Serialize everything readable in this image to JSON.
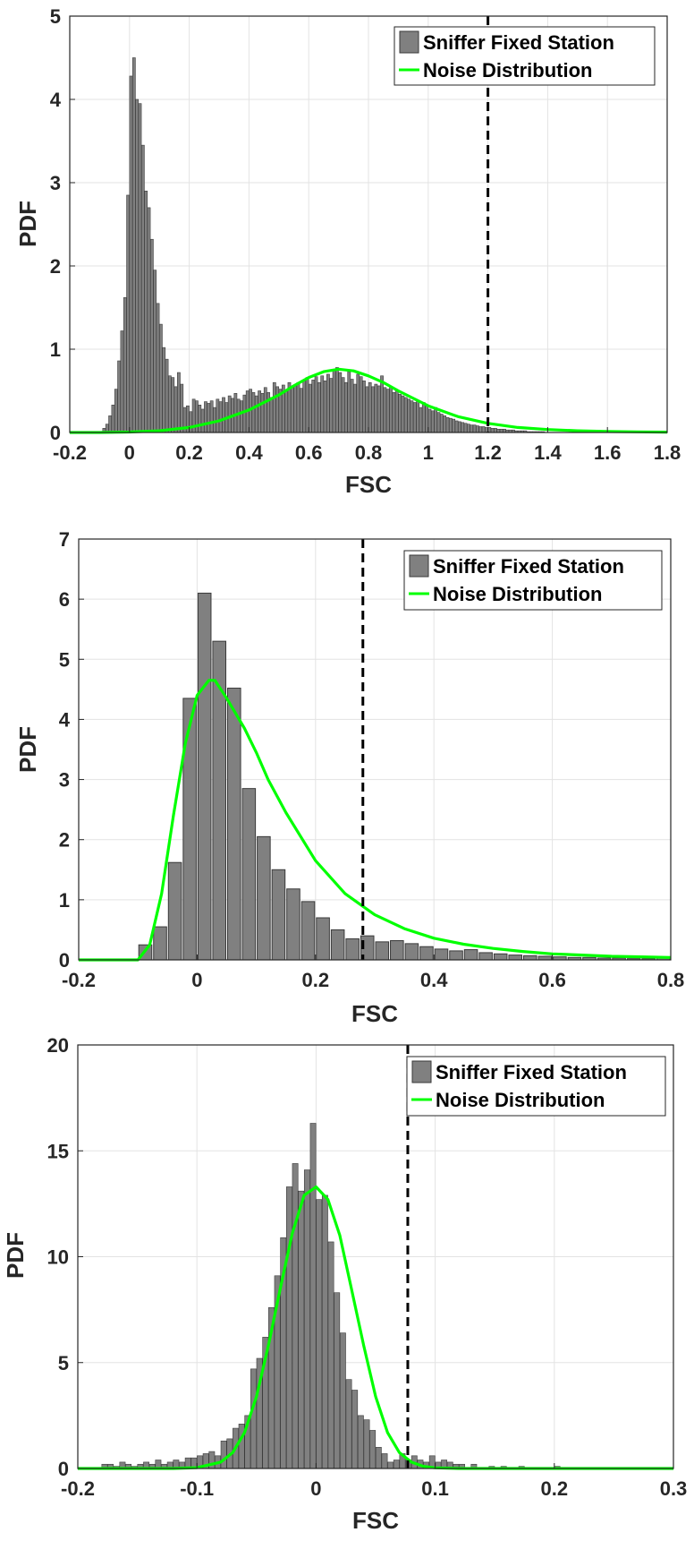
{
  "colors": {
    "bar_fill": "#808080",
    "bar_edge": "#3a3a3a",
    "noise_line": "#00ff00",
    "threshold_line": "#000000",
    "grid": "#e3e3e3",
    "axis": "#262626"
  },
  "chart_data": [
    {
      "type": "bar",
      "xlabel": "FSC",
      "ylabel": "PDF",
      "xlim": [
        -0.2,
        1.8
      ],
      "ylim": [
        0,
        5
      ],
      "xticks": [
        -0.2,
        0,
        0.2,
        0.4,
        0.6,
        0.8,
        1,
        1.2,
        1.4,
        1.6,
        1.8
      ],
      "xtick_labels": [
        "-0.2",
        "0",
        "0.2",
        "0.4",
        "0.6",
        "0.8",
        "1",
        "1.2",
        "1.4",
        "1.6",
        "1.8"
      ],
      "yticks": [
        0,
        1,
        2,
        3,
        4,
        5
      ],
      "ytick_labels": [
        "0",
        "1",
        "2",
        "3",
        "4",
        "5"
      ],
      "grid": true,
      "legend": {
        "location": "top-right",
        "entries": [
          "Sniffer Fixed Station",
          "Noise Distribution"
        ]
      },
      "series": [
        {
          "name": "Sniffer Fixed Station",
          "kind": "histogram",
          "bin_width": 0.01,
          "bin_centers": [
            -0.085,
            -0.075,
            -0.065,
            -0.055,
            -0.045,
            -0.035,
            -0.025,
            -0.015,
            -0.005,
            0.005,
            0.015,
            0.025,
            0.035,
            0.045,
            0.055,
            0.065,
            0.075,
            0.085,
            0.095,
            0.105,
            0.115,
            0.125,
            0.135,
            0.145,
            0.155,
            0.165,
            0.175,
            0.185,
            0.195,
            0.205,
            0.215,
            0.225,
            0.235,
            0.245,
            0.255,
            0.265,
            0.275,
            0.285,
            0.295,
            0.305,
            0.315,
            0.325,
            0.335,
            0.345,
            0.355,
            0.365,
            0.375,
            0.385,
            0.395,
            0.405,
            0.415,
            0.425,
            0.435,
            0.445,
            0.455,
            0.465,
            0.475,
            0.485,
            0.495,
            0.505,
            0.515,
            0.525,
            0.535,
            0.545,
            0.555,
            0.565,
            0.575,
            0.585,
            0.595,
            0.605,
            0.615,
            0.625,
            0.635,
            0.645,
            0.655,
            0.665,
            0.675,
            0.685,
            0.695,
            0.705,
            0.715,
            0.725,
            0.735,
            0.745,
            0.755,
            0.765,
            0.775,
            0.785,
            0.795,
            0.805,
            0.815,
            0.825,
            0.835,
            0.845,
            0.855,
            0.865,
            0.875,
            0.885,
            0.895,
            0.905,
            0.915,
            0.925,
            0.935,
            0.945,
            0.955,
            0.965,
            0.975,
            0.985,
            0.995,
            1.005,
            1.015,
            1.025,
            1.035,
            1.045,
            1.055,
            1.065,
            1.075,
            1.085,
            1.095,
            1.105,
            1.115,
            1.125,
            1.135,
            1.145,
            1.155,
            1.165,
            1.175,
            1.185,
            1.195,
            1.205,
            1.215,
            1.225,
            1.235,
            1.245,
            1.255,
            1.265,
            1.275,
            1.285,
            1.295,
            1.305,
            1.315,
            1.325,
            1.335,
            1.345,
            1.355,
            1.365,
            1.375,
            1.385,
            1.395
          ],
          "values": [
            0.05,
            0.1,
            0.2,
            0.33,
            0.52,
            0.86,
            1.22,
            1.62,
            2.85,
            4.28,
            4.5,
            4.0,
            3.95,
            3.45,
            2.9,
            2.7,
            2.32,
            1.95,
            1.55,
            1.3,
            1.02,
            0.88,
            0.68,
            0.66,
            0.55,
            0.72,
            0.58,
            0.3,
            0.32,
            0.25,
            0.4,
            0.38,
            0.33,
            0.28,
            0.37,
            0.35,
            0.38,
            0.3,
            0.4,
            0.37,
            0.42,
            0.36,
            0.44,
            0.41,
            0.47,
            0.4,
            0.38,
            0.45,
            0.5,
            0.52,
            0.48,
            0.44,
            0.5,
            0.47,
            0.54,
            0.48,
            0.42,
            0.6,
            0.55,
            0.52,
            0.57,
            0.5,
            0.6,
            0.55,
            0.56,
            0.6,
            0.53,
            0.62,
            0.66,
            0.58,
            0.63,
            0.67,
            0.6,
            0.68,
            0.62,
            0.7,
            0.65,
            0.75,
            0.78,
            0.72,
            0.66,
            0.6,
            0.73,
            0.64,
            0.58,
            0.7,
            0.67,
            0.62,
            0.55,
            0.6,
            0.55,
            0.58,
            0.56,
            0.68,
            0.54,
            0.52,
            0.55,
            0.48,
            0.5,
            0.46,
            0.44,
            0.42,
            0.4,
            0.38,
            0.36,
            0.38,
            0.3,
            0.36,
            0.33,
            0.28,
            0.26,
            0.3,
            0.24,
            0.22,
            0.2,
            0.18,
            0.17,
            0.16,
            0.14,
            0.13,
            0.12,
            0.11,
            0.1,
            0.09,
            0.09,
            0.08,
            0.07,
            0.07,
            0.06,
            0.06,
            0.05,
            0.05,
            0.04,
            0.04,
            0.04,
            0.03,
            0.03,
            0.03,
            0.02,
            0.02,
            0.02,
            0.02,
            0.01,
            0.01,
            0.01,
            0.01,
            0.01,
            0.01
          ]
        },
        {
          "name": "Noise Distribution",
          "kind": "line",
          "x": [
            -0.2,
            -0.1,
            0.0,
            0.1,
            0.2,
            0.3,
            0.4,
            0.5,
            0.55,
            0.6,
            0.65,
            0.7,
            0.75,
            0.8,
            0.85,
            0.9,
            1.0,
            1.1,
            1.2,
            1.3,
            1.4,
            1.5,
            1.6,
            1.7,
            1.8
          ],
          "y": [
            0.0,
            0.0,
            0.005,
            0.02,
            0.06,
            0.14,
            0.27,
            0.45,
            0.56,
            0.66,
            0.73,
            0.76,
            0.74,
            0.68,
            0.6,
            0.5,
            0.32,
            0.19,
            0.11,
            0.06,
            0.035,
            0.02,
            0.012,
            0.007,
            0.004
          ]
        }
      ],
      "threshold_x": 1.2
    },
    {
      "type": "bar",
      "xlabel": "FSC",
      "ylabel": "PDF",
      "xlim": [
        -0.2,
        0.8
      ],
      "ylim": [
        0,
        7
      ],
      "xticks": [
        -0.2,
        0,
        0.2,
        0.4,
        0.6,
        0.8
      ],
      "xtick_labels": [
        "-0.2",
        "0",
        "0.2",
        "0.4",
        "0.6",
        "0.8"
      ],
      "yticks": [
        0,
        1,
        2,
        3,
        4,
        5,
        6,
        7
      ],
      "ytick_labels": [
        "0",
        "1",
        "2",
        "3",
        "4",
        "5",
        "6",
        "7"
      ],
      "grid": true,
      "legend": {
        "location": "top-right",
        "entries": [
          "Sniffer Fixed Station",
          "Noise Distribution"
        ]
      },
      "series": [
        {
          "name": "Sniffer Fixed Station",
          "kind": "histogram",
          "bin_width": 0.025,
          "bin_centers": [
            -0.0875,
            -0.0625,
            -0.0375,
            -0.0125,
            0.0125,
            0.0375,
            0.0625,
            0.0875,
            0.1125,
            0.1375,
            0.1625,
            0.1875,
            0.2125,
            0.2375,
            0.2625,
            0.2875,
            0.3125,
            0.3375,
            0.3625,
            0.3875,
            0.4125,
            0.4375,
            0.4625,
            0.4875,
            0.5125,
            0.5375,
            0.5625,
            0.5875,
            0.6125,
            0.6375,
            0.6625,
            0.6875,
            0.7125,
            0.7375,
            0.7625,
            0.7875
          ],
          "values": [
            0.25,
            0.55,
            1.62,
            4.35,
            6.1,
            5.3,
            4.52,
            2.85,
            2.05,
            1.5,
            1.18,
            0.97,
            0.7,
            0.5,
            0.35,
            0.4,
            0.3,
            0.32,
            0.27,
            0.22,
            0.18,
            0.15,
            0.17,
            0.12,
            0.1,
            0.08,
            0.07,
            0.06,
            0.05,
            0.04,
            0.04,
            0.03,
            0.03,
            0.02,
            0.02,
            0.05
          ]
        },
        {
          "name": "Noise Distribution",
          "kind": "line",
          "x": [
            -0.2,
            -0.1,
            -0.08,
            -0.06,
            -0.04,
            -0.02,
            0.0,
            0.02,
            0.03,
            0.05,
            0.08,
            0.1,
            0.12,
            0.15,
            0.2,
            0.25,
            0.3,
            0.35,
            0.4,
            0.45,
            0.5,
            0.55,
            0.6,
            0.65,
            0.7,
            0.75,
            0.8
          ],
          "y": [
            0.0,
            0.0,
            0.25,
            1.1,
            2.4,
            3.6,
            4.4,
            4.65,
            4.65,
            4.35,
            3.85,
            3.45,
            3.0,
            2.45,
            1.65,
            1.1,
            0.75,
            0.52,
            0.36,
            0.26,
            0.19,
            0.14,
            0.1,
            0.08,
            0.06,
            0.05,
            0.04
          ]
        }
      ],
      "threshold_x": 0.28
    },
    {
      "type": "bar",
      "xlabel": "FSC",
      "ylabel": "PDF",
      "xlim": [
        -0.2,
        0.3
      ],
      "ylim": [
        0,
        20
      ],
      "xticks": [
        -0.2,
        -0.1,
        0,
        0.1,
        0.2,
        0.3
      ],
      "xtick_labels": [
        "-0.2",
        "-0.1",
        "0",
        "0.1",
        "0.2",
        "0.3"
      ],
      "yticks": [
        0,
        5,
        10,
        15,
        20
      ],
      "ytick_labels": [
        "0",
        "5",
        "10",
        "15",
        "20"
      ],
      "grid": true,
      "legend": {
        "location": "top-right",
        "entries": [
          "Sniffer Fixed Station",
          "Noise Distribution"
        ]
      },
      "series": [
        {
          "name": "Sniffer Fixed Station",
          "kind": "histogram",
          "bin_width": 0.005,
          "bin_centers": [
            -0.1775,
            -0.1725,
            -0.1675,
            -0.1625,
            -0.1575,
            -0.1525,
            -0.1475,
            -0.1425,
            -0.1375,
            -0.1325,
            -0.1275,
            -0.1225,
            -0.1175,
            -0.1125,
            -0.1075,
            -0.1025,
            -0.0975,
            -0.0925,
            -0.0875,
            -0.0825,
            -0.0775,
            -0.0725,
            -0.0675,
            -0.0625,
            -0.0575,
            -0.0525,
            -0.0475,
            -0.0425,
            -0.0375,
            -0.0325,
            -0.0275,
            -0.0225,
            -0.0175,
            -0.0125,
            -0.0075,
            -0.0025,
            0.0025,
            0.0075,
            0.0125,
            0.0175,
            0.0225,
            0.0275,
            0.0325,
            0.0375,
            0.0425,
            0.0475,
            0.0525,
            0.0575,
            0.0625,
            0.0675,
            0.0725,
            0.0775,
            0.0825,
            0.0875,
            0.0925,
            0.0975,
            0.1025,
            0.1075,
            0.1125,
            0.1175,
            0.1225,
            0.1325,
            0.1475,
            0.1575,
            0.1725,
            0.2025
          ],
          "values": [
            0.2,
            0.2,
            0.1,
            0.3,
            0.2,
            0.1,
            0.2,
            0.3,
            0.2,
            0.4,
            0.2,
            0.3,
            0.4,
            0.3,
            0.5,
            0.5,
            0.6,
            0.7,
            0.8,
            0.6,
            1.3,
            1.4,
            1.9,
            2.1,
            2.5,
            4.7,
            5.2,
            6.2,
            7.6,
            9.1,
            10.9,
            13.3,
            14.4,
            13.1,
            14.1,
            16.3,
            12.7,
            12.9,
            10.7,
            8.3,
            6.4,
            4.2,
            3.7,
            2.5,
            2.3,
            1.8,
            1.0,
            0.7,
            0.3,
            0.4,
            0.7,
            0.4,
            0.6,
            0.4,
            0.3,
            0.6,
            0.3,
            0.4,
            0.3,
            0.2,
            0.2,
            0.2,
            0.1,
            0.1,
            0.1,
            0.1
          ]
        },
        {
          "name": "Noise Distribution",
          "kind": "line",
          "x": [
            -0.2,
            -0.12,
            -0.1,
            -0.08,
            -0.07,
            -0.06,
            -0.05,
            -0.04,
            -0.03,
            -0.02,
            -0.01,
            0.0,
            0.01,
            0.02,
            0.03,
            0.04,
            0.05,
            0.06,
            0.07,
            0.08,
            0.09,
            0.1,
            0.12,
            0.3
          ],
          "y": [
            0.0,
            0.0,
            0.04,
            0.3,
            0.75,
            1.7,
            3.4,
            5.8,
            8.5,
            11.1,
            12.9,
            13.3,
            12.7,
            11.0,
            8.4,
            5.8,
            3.4,
            1.7,
            0.75,
            0.3,
            0.1,
            0.03,
            0.0,
            0.0
          ]
        }
      ],
      "threshold_x": 0.077
    }
  ]
}
